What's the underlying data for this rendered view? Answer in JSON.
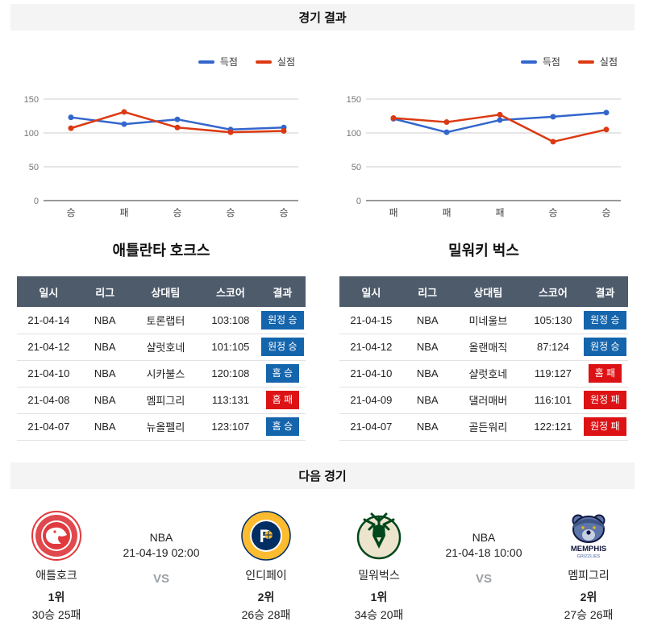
{
  "page": {
    "results_header": "경기 결과",
    "next_header": "다음 경기",
    "vs_label": "VS"
  },
  "colors": {
    "scored_line": "#3366cc",
    "conceded_line": "#dc3912",
    "win_badge": "#1565ad",
    "loss_badge": "#dc1215",
    "table_header_bg": "#4e5b6b"
  },
  "chart_data": [
    {
      "type": "line",
      "team": "애틀란타 호크스",
      "categories": [
        "승",
        "패",
        "승",
        "승",
        "승"
      ],
      "series": [
        {
          "name": "득점",
          "color": "#3366cc",
          "values": [
            123,
            113,
            120,
            105,
            108
          ]
        },
        {
          "name": "실점",
          "color": "#dc3912",
          "values": [
            107,
            131,
            108,
            101,
            103
          ]
        }
      ],
      "ylim": [
        0,
        150
      ],
      "yticks": [
        0,
        50,
        100,
        150
      ],
      "grid": true,
      "legend_position": "top-right"
    },
    {
      "type": "line",
      "team": "밀워키 벅스",
      "categories": [
        "패",
        "패",
        "패",
        "승",
        "승"
      ],
      "series": [
        {
          "name": "득점",
          "color": "#3366cc",
          "values": [
            121,
            101,
            119,
            124,
            130
          ]
        },
        {
          "name": "실점",
          "color": "#dc3912",
          "values": [
            122,
            116,
            127,
            87,
            105
          ]
        }
      ],
      "ylim": [
        0,
        150
      ],
      "yticks": [
        0,
        50,
        100,
        150
      ],
      "grid": true,
      "legend_position": "top-right"
    }
  ],
  "tables": [
    {
      "title": "애틀란타 호크스",
      "columns": [
        "일시",
        "리그",
        "상대팀",
        "스코어",
        "결과"
      ],
      "rows": [
        {
          "date": "21-04-14",
          "league": "NBA",
          "opponent": "토론랩터",
          "score": "103:108",
          "result": "원정 승",
          "result_type": "win"
        },
        {
          "date": "21-04-12",
          "league": "NBA",
          "opponent": "샬럿호네",
          "score": "101:105",
          "result": "원정 승",
          "result_type": "win"
        },
        {
          "date": "21-04-10",
          "league": "NBA",
          "opponent": "시카불스",
          "score": "120:108",
          "result": "홈 승",
          "result_type": "win"
        },
        {
          "date": "21-04-08",
          "league": "NBA",
          "opponent": "멤피그리",
          "score": "113:131",
          "result": "홈 패",
          "result_type": "loss"
        },
        {
          "date": "21-04-07",
          "league": "NBA",
          "opponent": "뉴올펠리",
          "score": "123:107",
          "result": "홈 승",
          "result_type": "win"
        }
      ]
    },
    {
      "title": "밀워키 벅스",
      "columns": [
        "일시",
        "리그",
        "상대팀",
        "스코어",
        "결과"
      ],
      "rows": [
        {
          "date": "21-04-15",
          "league": "NBA",
          "opponent": "미네울브",
          "score": "105:130",
          "result": "원정 승",
          "result_type": "win"
        },
        {
          "date": "21-04-12",
          "league": "NBA",
          "opponent": "올랜매직",
          "score": "87:124",
          "result": "원정 승",
          "result_type": "win"
        },
        {
          "date": "21-04-10",
          "league": "NBA",
          "opponent": "샬럿호네",
          "score": "119:127",
          "result": "홈 패",
          "result_type": "loss"
        },
        {
          "date": "21-04-09",
          "league": "NBA",
          "opponent": "댈러매버",
          "score": "116:101",
          "result": "원정 패",
          "result_type": "loss"
        },
        {
          "date": "21-04-07",
          "league": "NBA",
          "opponent": "골든워리",
          "score": "122:121",
          "result": "원정 패",
          "result_type": "loss"
        }
      ]
    }
  ],
  "next_games": [
    {
      "league": "NBA",
      "datetime": "21-04-19 02:00",
      "home": {
        "name": "애틀호크",
        "rank": "1위",
        "record": "30승 25패",
        "logo": "hawks"
      },
      "away": {
        "name": "인디페이",
        "rank": "2위",
        "record": "26승 28패",
        "logo": "pacers"
      }
    },
    {
      "league": "NBA",
      "datetime": "21-04-18 10:00",
      "home": {
        "name": "밀워벅스",
        "rank": "1위",
        "record": "34승 20패",
        "logo": "bucks"
      },
      "away": {
        "name": "멤피그리",
        "rank": "2위",
        "record": "27승 26패",
        "logo": "grizzlies"
      }
    }
  ],
  "logo_text": {
    "grizzlies_main": "MEMPHIS",
    "grizzlies_sub": "GRIZZLIES"
  }
}
